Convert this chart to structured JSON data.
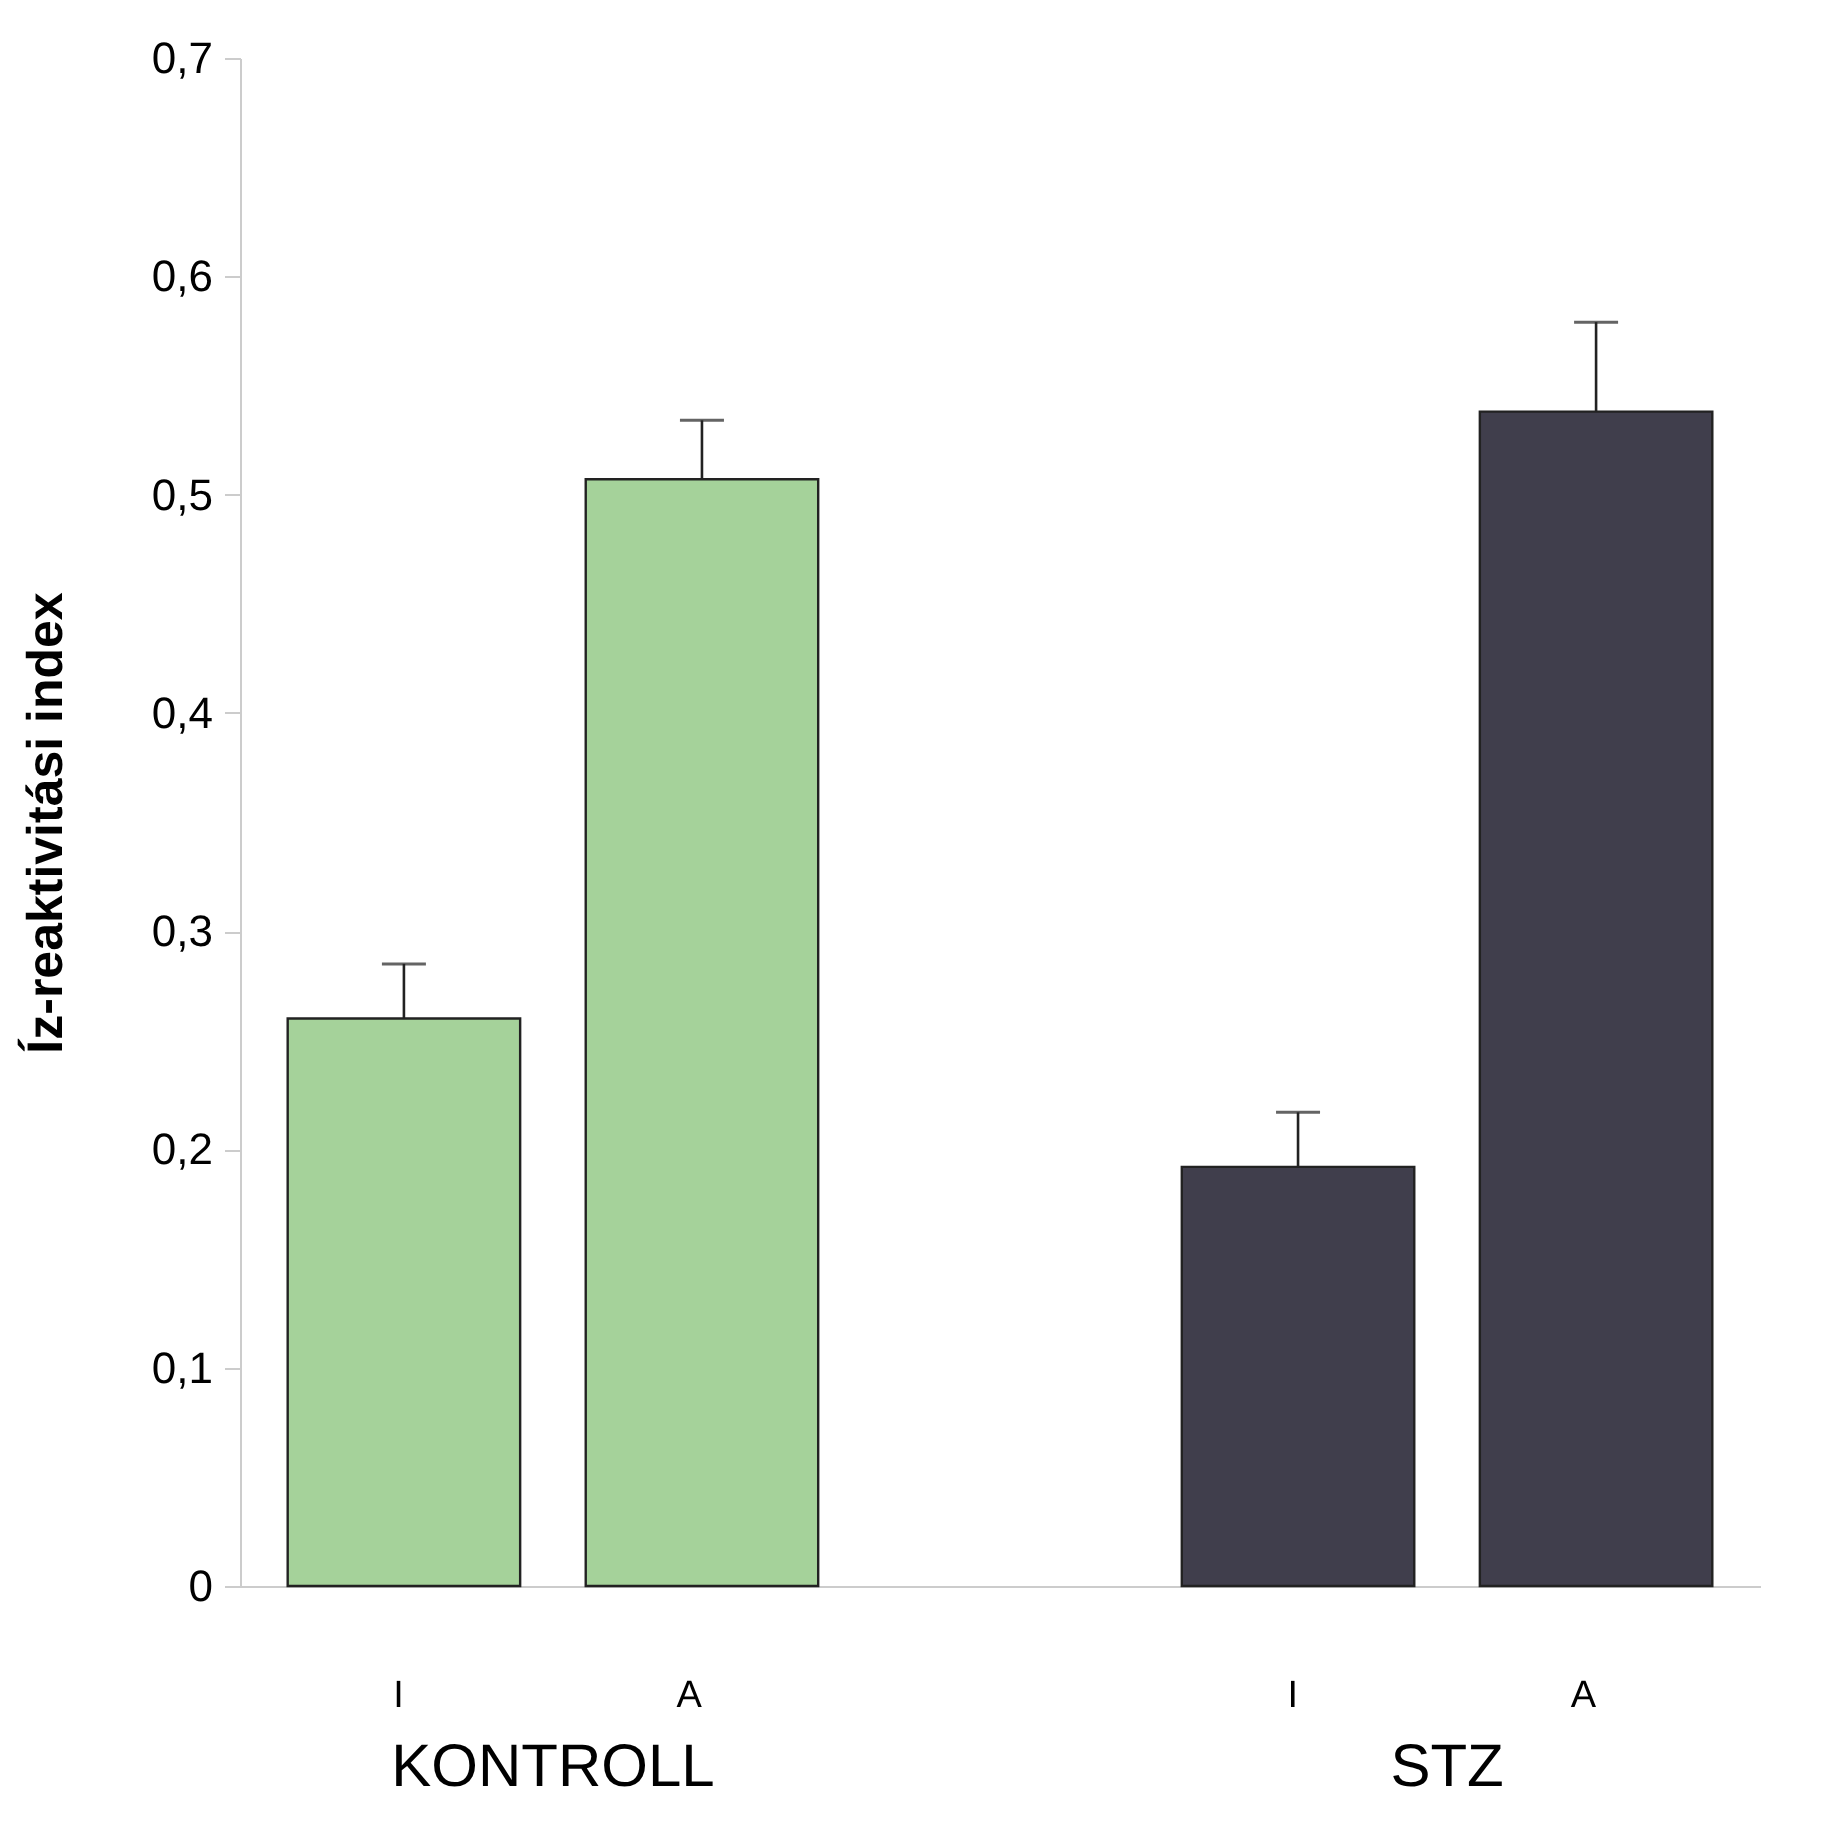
{
  "chart_data": {
    "type": "bar",
    "ylabel": "Íz-reaktivitási index",
    "categories": [
      "I",
      "A",
      "I",
      "A"
    ],
    "values": [
      0.26,
      0.507,
      0.192,
      0.538
    ],
    "errors": [
      0.025,
      0.027,
      0.025,
      0.041
    ],
    "colors": [
      "#a5d29a",
      "#a5d29a",
      "#403e4c",
      "#403e4c"
    ],
    "ylim": [
      0,
      0.7
    ],
    "yticks": [
      {
        "value": 0,
        "label": "0"
      },
      {
        "value": 0.1,
        "label": "0,1"
      },
      {
        "value": 0.2,
        "label": "0,2"
      },
      {
        "value": 0.3,
        "label": "0,3"
      },
      {
        "value": 0.4,
        "label": "0,4"
      },
      {
        "value": 0.5,
        "label": "0,5"
      },
      {
        "value": 0.6,
        "label": "0,6"
      },
      {
        "value": 0.7,
        "label": "0,7"
      }
    ],
    "annotations": [
      "KONTROLL",
      "STZ"
    ],
    "grid": false
  }
}
